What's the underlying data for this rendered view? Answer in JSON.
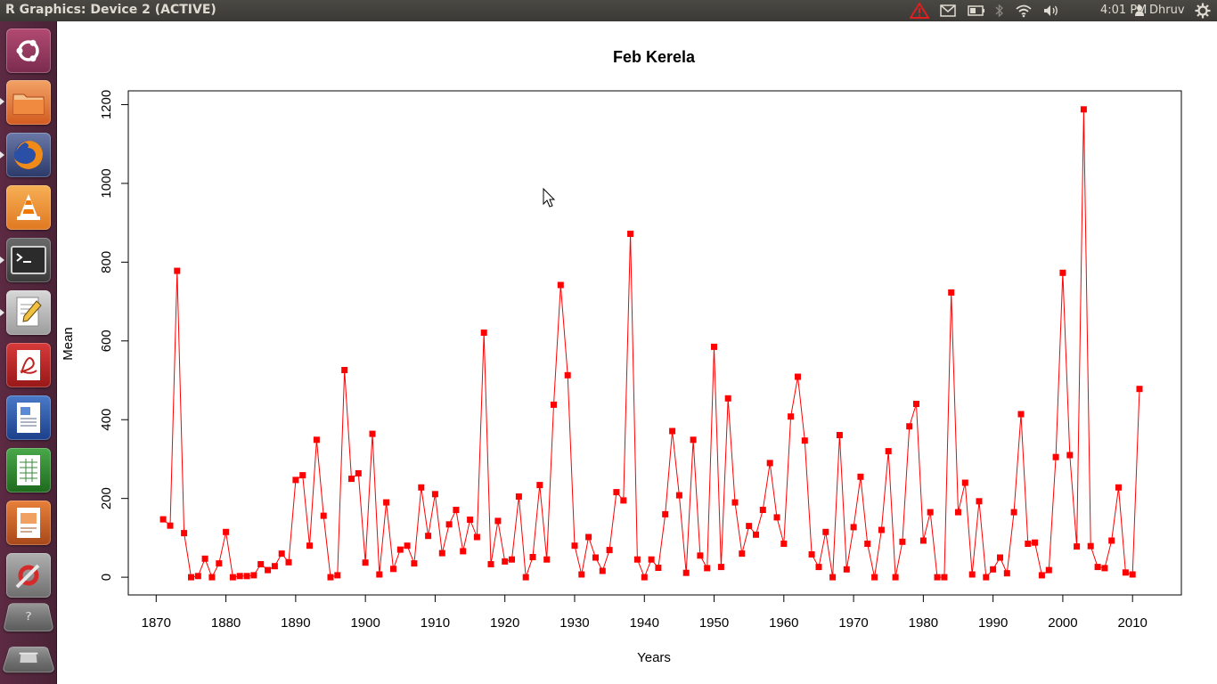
{
  "window": {
    "title": "R Graphics: Device 2 (ACTIVE)"
  },
  "panel": {
    "clock": "4:01 PM",
    "user": "Dhruv",
    "indicators": [
      "warning-icon",
      "mail-icon",
      "battery-icon",
      "bluetooth-icon",
      "wifi-icon",
      "volume-icon",
      "user-icon",
      "settings-gear-icon"
    ]
  },
  "launcher": {
    "items": [
      "ubuntu-dash-icon",
      "files-icon",
      "firefox-icon",
      "vlc-icon",
      "terminal-icon",
      "text-editor-icon",
      "pdf-viewer-icon",
      "writer-icon",
      "calc-icon",
      "impress-icon",
      "system-settings-icon",
      "workspace-switcher-icon",
      "trash-icon"
    ]
  },
  "colors": {
    "series": "#ff0000",
    "accent_launcher": "#5c2a42"
  },
  "chart_data": {
    "type": "line",
    "title": "Feb Kerela",
    "xlabel": "Years",
    "ylabel": "Mean",
    "xlim": [
      1866,
      2017
    ],
    "ylim": [
      -45,
      1235
    ],
    "xticks": [
      1870,
      1880,
      1890,
      1900,
      1910,
      1920,
      1930,
      1940,
      1950,
      1960,
      1970,
      1980,
      1990,
      2000,
      2010
    ],
    "yticks": [
      0,
      200,
      400,
      600,
      800,
      1000,
      1200
    ],
    "markers": "square",
    "grid": false,
    "series": [
      {
        "x": [
          1871,
          1872,
          1873,
          1874,
          1875,
          1876,
          1877,
          1878,
          1879,
          1880,
          1881,
          1882,
          1883,
          1884,
          1885,
          1886,
          1887,
          1888,
          1889,
          1890,
          1891,
          1892,
          1893,
          1894,
          1895,
          1896,
          1897,
          1898,
          1899,
          1900,
          1901,
          1902,
          1903,
          1904,
          1905,
          1906,
          1907,
          1908,
          1909,
          1910,
          1911,
          1912,
          1913,
          1914,
          1915,
          1916,
          1917,
          1918,
          1919,
          1920,
          1921,
          1922,
          1923,
          1924,
          1925,
          1926,
          1927,
          1928,
          1929,
          1930,
          1931,
          1932,
          1933,
          1934,
          1935,
          1936,
          1937,
          1938,
          1939,
          1940,
          1941,
          1942,
          1943,
          1944,
          1945,
          1946,
          1947,
          1948,
          1949,
          1950,
          1951,
          1952,
          1953,
          1954,
          1955,
          1956,
          1957,
          1958,
          1959,
          1960,
          1961,
          1962,
          1963,
          1964,
          1965,
          1966,
          1967,
          1968,
          1969,
          1970,
          1971,
          1972,
          1973,
          1974,
          1975,
          1976,
          1977,
          1978,
          1979,
          1980,
          1981,
          1982,
          1983,
          1984,
          1985,
          1986,
          1987,
          1988,
          1989,
          1990,
          1991,
          1992,
          1993,
          1994,
          1995,
          1996,
          1997,
          1998,
          1999,
          2000,
          2001,
          2002,
          2003,
          2004,
          2005,
          2006,
          2007,
          2008,
          2009,
          2010,
          2011
        ],
        "values": [
          147,
          131,
          778,
          112,
          0,
          3,
          47,
          0,
          35,
          115,
          0,
          3,
          3,
          5,
          33,
          18,
          28,
          60,
          38,
          247,
          259,
          80,
          349,
          156,
          0,
          5,
          526,
          250,
          264,
          37,
          364,
          7,
          190,
          21,
          70,
          80,
          35,
          228,
          105,
          211,
          61,
          134,
          171,
          66,
          146,
          102,
          621,
          33,
          143,
          40,
          45,
          205,
          0,
          51,
          234,
          45,
          438,
          742,
          513,
          80,
          7,
          102,
          50,
          16,
          69,
          216,
          195,
          872,
          45,
          0,
          45,
          24,
          160,
          371,
          208,
          11,
          349,
          55,
          23,
          585,
          26,
          454,
          190,
          60,
          130,
          108,
          171,
          290,
          152,
          85,
          408,
          509,
          347,
          58,
          26,
          115,
          0,
          361,
          20,
          127,
          255,
          85,
          0,
          120,
          320,
          0,
          90,
          383,
          440,
          93,
          165,
          0,
          0,
          723,
          165,
          240,
          7,
          193,
          0,
          20,
          50,
          10,
          165,
          414,
          85,
          88,
          5,
          18,
          305,
          773,
          310,
          78,
          1188,
          79,
          26,
          23,
          93,
          228,
          12,
          7,
          478
        ]
      }
    ]
  }
}
